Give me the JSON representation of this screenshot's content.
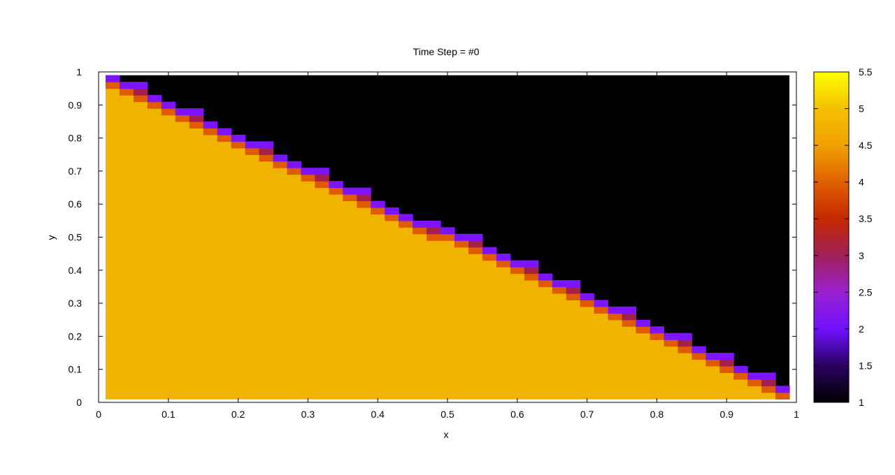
{
  "chart_data": {
    "type": "heatmap",
    "title": "Time Step = #0",
    "xlabel": "x",
    "ylabel": "y",
    "xlim": [
      0,
      1
    ],
    "ylim": [
      0,
      1
    ],
    "xticks": [
      "0",
      "0.1",
      "0.2",
      "0.3",
      "0.4",
      "0.5",
      "0.6",
      "0.7",
      "0.8",
      "0.9",
      "1"
    ],
    "yticks": [
      "0",
      "0.1",
      "0.2",
      "0.3",
      "0.4",
      "0.5",
      "0.6",
      "0.7",
      "0.8",
      "0.9",
      "1"
    ],
    "grid": {
      "nx": 49,
      "ny": 49,
      "x_min": 0.01,
      "x_max": 0.99,
      "y_min": 0.01,
      "y_max": 0.99
    },
    "cells_note_values": "diagonal band from (0.01,0.98) to (0.99,0.01)",
    "colorbar": {
      "range": [
        1,
        5.5
      ],
      "ticks": [
        "1",
        "1.5",
        "2",
        "2.5",
        "3",
        "3.5",
        "4",
        "4.5",
        "5",
        "5.5"
      ],
      "palette": [
        "#000000",
        "#2a0060",
        "#7010ff",
        "#9a20d0",
        "#a0205a",
        "#c42800",
        "#e06000",
        "#f0a000",
        "#f5c000",
        "#ffff00"
      ]
    },
    "values": {
      "filled": 5.0,
      "empty": 1.0,
      "interface_upper": 2.1,
      "interface_mid": 3.1,
      "interface_lower": 4.3
    },
    "colors": {
      "filled": "#f0b400",
      "empty": "#000000",
      "interface_upper": "#7c14ff",
      "interface_mid": "#a4204c",
      "interface_lower": "#e05a00"
    }
  }
}
